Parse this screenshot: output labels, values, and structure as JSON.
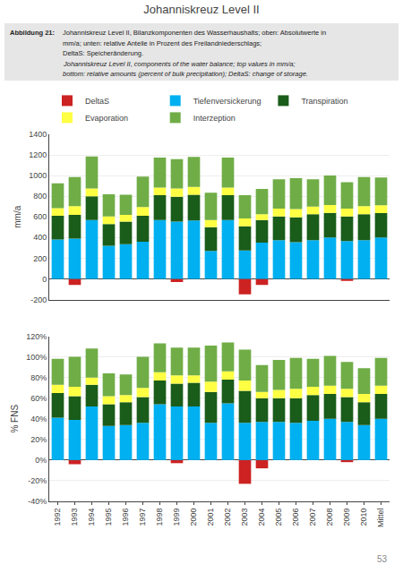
{
  "chart_data": [
    {
      "type": "bar",
      "title": "Johanniskreuz Level II",
      "annotations": [
        "Abbildung 21:",
        "Johanniskreuz Level II, Bilanzkomponenten des Wasserhaushalts; oben: Absolutwerte in",
        "mm/a; unten: relative Anteile in Prozent des Freilandniederschlags;",
        "DeltaS: Speicheränderung.",
        "Johanniskreuz Level II, components of the water balance; top values in mm/a;",
        "bottom: relative amounts (percent of bulk precipitation); DeltaS: change of storage."
      ],
      "stacked": true,
      "grid": true,
      "legend": "upper left",
      "tick_labels": "y",
      "ylabel": "mm/a",
      "categories": [
        "1992",
        "1993",
        "1994",
        "1995",
        "1996",
        "1997",
        "1998",
        "1999",
        "2000",
        "2001",
        "2002",
        "2003",
        "2004",
        "2005",
        "2006",
        "2007",
        "2008",
        "2009",
        "2010",
        "Mittel"
      ],
      "series": [
        {
          "name": "DeltaS",
          "color": "#cc2222",
          "values": [
            0,
            -60,
            0,
            0,
            0,
            0,
            0,
            -30,
            0,
            0,
            0,
            -150,
            -60,
            0,
            0,
            0,
            0,
            -20,
            0,
            0
          ]
        },
        {
          "name": "Tiefenversickerung",
          "color": "#00b0f0",
          "values": [
            380,
            390,
            570,
            320,
            335,
            360,
            570,
            555,
            565,
            270,
            570,
            275,
            350,
            375,
            355,
            375,
            400,
            365,
            375,
            400
          ]
        },
        {
          "name": "Transpiration",
          "color": "#1a5c1a",
          "values": [
            230,
            230,
            230,
            210,
            220,
            250,
            240,
            240,
            250,
            230,
            240,
            235,
            220,
            230,
            240,
            250,
            240,
            240,
            250,
            237
          ]
        },
        {
          "name": "Evaporation",
          "color": "#ffff44",
          "values": [
            75,
            85,
            75,
            75,
            65,
            85,
            75,
            80,
            75,
            70,
            75,
            75,
            55,
            75,
            80,
            75,
            75,
            75,
            80,
            75
          ]
        },
        {
          "name": "Interzeption",
          "color": "#70ad47",
          "values": [
            240,
            280,
            310,
            215,
            195,
            295,
            290,
            285,
            290,
            265,
            290,
            225,
            245,
            285,
            300,
            265,
            285,
            255,
            280,
            270
          ]
        }
      ],
      "ylim": [
        -200,
        1400
      ],
      "yticks": [
        -200,
        0,
        200,
        400,
        600,
        800,
        1000,
        1200,
        1400
      ]
    },
    {
      "type": "bar",
      "annotations": [
        "53"
      ],
      "stacked": true,
      "grid": true,
      "legend": false,
      "ylabel": "% FNS",
      "categories": [
        "1992",
        "1993",
        "1994",
        "1995",
        "1996",
        "1997",
        "1998",
        "1999",
        "2000",
        "2001",
        "2002",
        "2003",
        "2004",
        "2005",
        "2006",
        "2007",
        "2008",
        "2009",
        "2010",
        "Mittel"
      ],
      "series": [
        {
          "name": "DeltaS",
          "color": "#cc2222",
          "values": [
            0,
            -4,
            0,
            0,
            0,
            0,
            0,
            -3,
            0,
            0,
            0,
            -23,
            -8,
            0,
            0,
            0,
            0,
            -2,
            0,
            0
          ]
        },
        {
          "name": "Tiefenversickerung",
          "color": "#00b0f0",
          "values": [
            41,
            39,
            52,
            33,
            34,
            36,
            54,
            52,
            52,
            36,
            55,
            36,
            37,
            37,
            36,
            38,
            40,
            37,
            34,
            40
          ]
        },
        {
          "name": "Transpiration",
          "color": "#1a5c1a",
          "values": [
            24,
            23,
            21,
            21,
            22,
            25,
            23,
            22,
            23,
            30,
            23,
            31,
            23,
            23,
            24,
            25,
            24,
            24,
            22,
            24
          ]
        },
        {
          "name": "Evaporation",
          "color": "#ffff44",
          "values": [
            8,
            9,
            7,
            8,
            7,
            9,
            8,
            8,
            7,
            10,
            8,
            10,
            6,
            8,
            9,
            8,
            8,
            8,
            8,
            8
          ]
        },
        {
          "name": "Interzeption",
          "color": "#70ad47",
          "values": [
            25,
            29,
            28,
            22,
            20,
            30,
            28,
            27,
            27,
            35,
            28,
            30,
            26,
            29,
            30,
            27,
            29,
            26,
            25,
            27
          ]
        }
      ],
      "ylim": [
        -40,
        120
      ],
      "yticks": [
        {
          "value": -40,
          "label": "-40%"
        },
        {
          "value": -20,
          "label": "-20%"
        },
        {
          "value": 0,
          "label": "0%"
        },
        {
          "value": 20,
          "label": "20%"
        },
        {
          "value": 40,
          "label": "40%"
        },
        {
          "value": 60,
          "label": "60%"
        },
        {
          "value": 80,
          "label": "80%"
        },
        {
          "value": 100,
          "label": "100%"
        },
        {
          "value": 120,
          "label": "120%"
        }
      ]
    }
  ]
}
